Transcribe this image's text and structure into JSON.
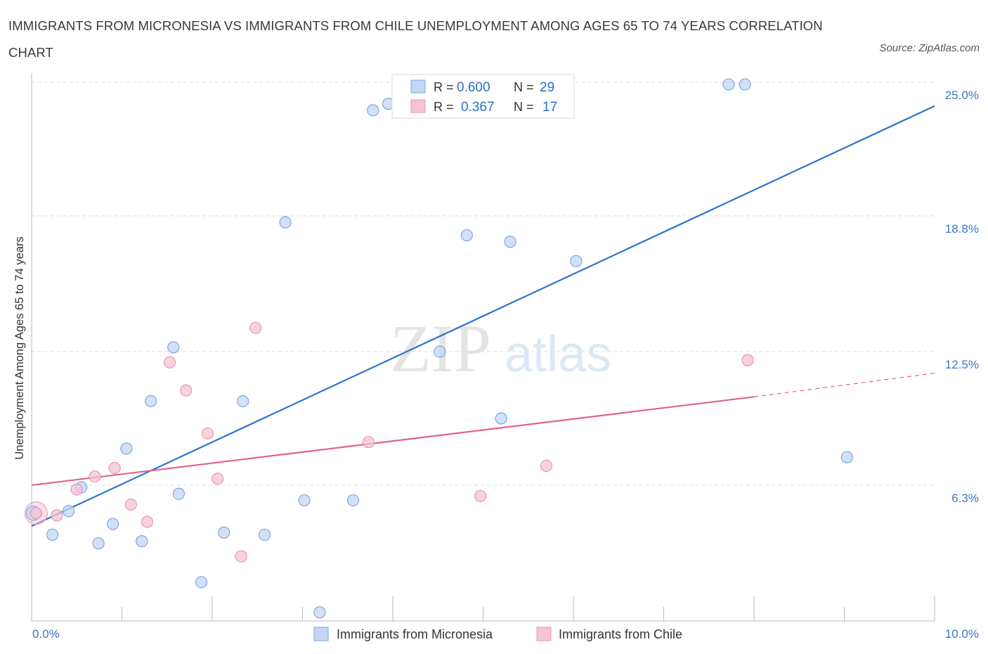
{
  "title": "IMMIGRANTS FROM MICRONESIA VS IMMIGRANTS FROM CHILE UNEMPLOYMENT AMONG AGES 65 TO 74 YEARS CORRELATION CHART",
  "source": "Source: ZipAtlas.com",
  "watermark": {
    "zip": "ZIP",
    "atlas": "atlas"
  },
  "colors": {
    "blue": "#2b74d0",
    "blue_fill": "#c3d7f5",
    "pink": "#e0628e",
    "pink_fill": "#f6c4d4"
  },
  "legend": {
    "r_label": "R =",
    "n_label": "N =",
    "entries": [
      {
        "r": "0.600",
        "n": "29"
      },
      {
        "r": "0.367",
        "n": "17"
      }
    ]
  },
  "chart_data": {
    "type": "scatter",
    "ylabel": "Unemployment Among Ages 65 to 74 years",
    "xlabel": "",
    "x_ticks": [
      "0.0%",
      "10.0%"
    ],
    "y_ticks": [
      "6.3%",
      "12.5%",
      "18.8%",
      "25.0%"
    ],
    "xlim": [
      0,
      10
    ],
    "ylim": [
      0,
      25
    ],
    "grid": true,
    "series": [
      {
        "name": "Immigrants from Micronesia",
        "color": "#2b74d0",
        "points": [
          [
            0.02,
            5.0
          ],
          [
            0.23,
            4.0
          ],
          [
            0.41,
            5.1
          ],
          [
            0.55,
            6.2
          ],
          [
            0.74,
            3.6
          ],
          [
            0.9,
            4.5
          ],
          [
            1.05,
            8.0
          ],
          [
            1.22,
            3.7
          ],
          [
            1.32,
            10.2
          ],
          [
            1.57,
            12.7
          ],
          [
            1.63,
            5.9
          ],
          [
            1.88,
            1.8
          ],
          [
            2.13,
            4.1
          ],
          [
            2.34,
            10.2
          ],
          [
            2.58,
            4.0
          ],
          [
            2.81,
            18.5
          ],
          [
            3.02,
            5.6
          ],
          [
            3.19,
            0.4
          ],
          [
            3.56,
            5.6
          ],
          [
            3.78,
            23.7
          ],
          [
            3.95,
            24.0
          ],
          [
            4.52,
            12.5
          ],
          [
            4.82,
            17.9
          ],
          [
            5.2,
            9.4
          ],
          [
            5.3,
            17.6
          ],
          [
            6.03,
            16.7
          ],
          [
            7.72,
            24.9
          ],
          [
            7.9,
            24.9
          ],
          [
            9.03,
            7.6
          ]
        ],
        "trend": {
          "x": [
            0.0,
            10.0
          ],
          "y": [
            4.4,
            23.9
          ]
        }
      },
      {
        "name": "Immigrants from Chile",
        "color": "#e0628e",
        "points": [
          [
            0.05,
            5.0
          ],
          [
            0.28,
            4.9
          ],
          [
            0.5,
            6.1
          ],
          [
            0.7,
            6.7
          ],
          [
            0.92,
            7.1
          ],
          [
            1.1,
            5.4
          ],
          [
            1.28,
            4.6
          ],
          [
            1.53,
            12.0
          ],
          [
            1.71,
            10.7
          ],
          [
            1.95,
            8.7
          ],
          [
            2.06,
            6.6
          ],
          [
            2.32,
            3.0
          ],
          [
            2.48,
            13.6
          ],
          [
            3.73,
            8.3
          ],
          [
            4.97,
            5.8
          ],
          [
            5.7,
            7.2
          ],
          [
            7.93,
            12.1
          ]
        ],
        "trend": {
          "x": [
            0.0,
            8.0
          ],
          "y": [
            6.3,
            10.4
          ]
        },
        "trend_dashed": {
          "x": [
            8.0,
            10.0
          ],
          "y": [
            10.4,
            11.5
          ]
        }
      }
    ]
  }
}
